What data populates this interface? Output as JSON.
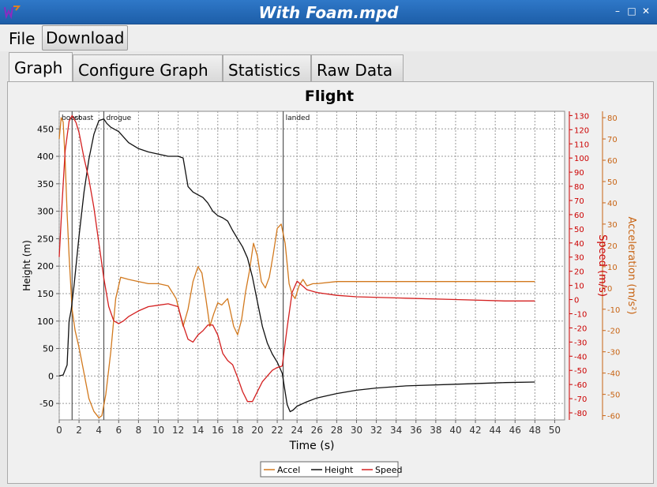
{
  "window": {
    "title": "With Foam.mpd"
  },
  "menu": {
    "file": "File",
    "download": "Download"
  },
  "tabs": [
    {
      "label": "Graph",
      "active": true
    },
    {
      "label": "Configure Graph",
      "active": false
    },
    {
      "label": "Statistics",
      "active": false
    },
    {
      "label": "Raw Data",
      "active": false
    }
  ],
  "colors": {
    "accel": "#d2791e",
    "height": "#111111",
    "speed": "#d42020",
    "speed_axis": "#cc0000",
    "accel_axis": "#c86414",
    "titlebar": "#2a6fbd"
  },
  "chart_data": {
    "type": "line",
    "title": "Flight",
    "xlabel": "Time (s)",
    "ylabel": "Height (m)",
    "y2label": "Speed (m/s)",
    "y3label": "Acceleration (m/s²)",
    "xlim": [
      0,
      51
    ],
    "xticks": [
      0,
      2,
      4,
      6,
      8,
      10,
      12,
      14,
      16,
      18,
      20,
      22,
      24,
      26,
      28,
      30,
      32,
      34,
      36,
      38,
      40,
      42,
      44,
      46,
      48,
      50
    ],
    "ylim": [
      -80,
      482
    ],
    "yticks": [
      -50,
      0,
      50,
      100,
      150,
      200,
      250,
      300,
      350,
      400,
      450
    ],
    "y2lim": [
      -85,
      133
    ],
    "y2ticks": [
      -80,
      -70,
      -60,
      -50,
      -40,
      -30,
      -20,
      -10,
      0,
      10,
      20,
      30,
      40,
      50,
      60,
      70,
      80,
      90,
      100,
      110,
      120,
      130
    ],
    "y3lim": [
      -62,
      83
    ],
    "y3ticks": [
      -60,
      -50,
      -40,
      -30,
      -20,
      -10,
      0,
      10,
      20,
      30,
      40,
      50,
      60,
      70,
      80
    ],
    "grid": true,
    "legend": {
      "placement": "bottom-center",
      "entries": [
        "Accel",
        "Height",
        "Speed"
      ]
    },
    "events": [
      {
        "label": "boost",
        "t": 0
      },
      {
        "label": "coast",
        "t": 1.3
      },
      {
        "label": "drogue",
        "t": 4.5
      },
      {
        "label": "landed",
        "t": 22.6
      }
    ],
    "series": [
      {
        "name": "Accel",
        "axis": "acceleration",
        "t": [
          0,
          0.2,
          0.4,
          0.6,
          0.8,
          1.0,
          1.3,
          1.6,
          2.0,
          2.5,
          3.0,
          3.5,
          4.0,
          4.3,
          4.7,
          5.2,
          5.7,
          6.2,
          7,
          8,
          9,
          10,
          11,
          11.8,
          12.5,
          13.0,
          13.5,
          14.0,
          14.4,
          14.8,
          15.2,
          15.6,
          16.0,
          16.4,
          17.0,
          17.6,
          18.0,
          18.4,
          18.8,
          19.2,
          19.6,
          20.0,
          20.4,
          20.8,
          21.2,
          21.6,
          22.0,
          22.4,
          22.8,
          23.2,
          23.5,
          23.8,
          24.2,
          24.6,
          25.0,
          25.6,
          26,
          28,
          30,
          32,
          35,
          40,
          45,
          48
        ],
        "v": [
          70,
          80,
          78,
          60,
          35,
          15,
          -10,
          -20,
          -28,
          -40,
          -52,
          -58,
          -61,
          -60,
          -50,
          -30,
          -5,
          5,
          4,
          3,
          2,
          2,
          1,
          -5,
          -18,
          -10,
          3,
          10,
          7,
          -5,
          -18,
          -12,
          -7,
          -8,
          -5,
          -18,
          -22,
          -15,
          -2,
          8,
          21,
          15,
          3,
          0,
          5,
          16,
          28,
          30,
          21,
          2,
          -3,
          -5,
          1,
          4,
          1,
          2,
          2,
          3,
          3,
          3,
          3,
          3,
          3,
          3
        ]
      },
      {
        "name": "Height",
        "axis": "height",
        "t": [
          0,
          0.4,
          0.8,
          1.0,
          1.2,
          1.5,
          2.0,
          2.5,
          3.0,
          3.5,
          4.0,
          4.5,
          4.8,
          5.2,
          6,
          7,
          8,
          9,
          10,
          11,
          12,
          12.5,
          13.0,
          13.5,
          14,
          14.5,
          15.0,
          15.5,
          16.0,
          16.5,
          17.0,
          17.5,
          18.0,
          18.5,
          19.0,
          19.5,
          20.0,
          20.5,
          21.0,
          21.5,
          22.0,
          22.5,
          23.0,
          23.3,
          23.6,
          24,
          25,
          26,
          28,
          30,
          32,
          35,
          40,
          45,
          48
        ],
        "v": [
          0,
          2,
          20,
          100,
          120,
          165,
          255,
          335,
          395,
          440,
          465,
          468,
          460,
          453,
          445,
          425,
          414,
          408,
          404,
          400,
          400,
          397,
          345,
          335,
          330,
          325,
          315,
          300,
          292,
          288,
          282,
          265,
          250,
          235,
          215,
          180,
          135,
          90,
          60,
          40,
          25,
          5,
          -52,
          -65,
          -62,
          -55,
          -47,
          -40,
          -32,
          -26,
          -22,
          -18,
          -15,
          -12,
          -11
        ]
      },
      {
        "name": "Speed",
        "axis": "speed",
        "t": [
          0,
          0.3,
          0.6,
          1.0,
          1.3,
          1.7,
          2.0,
          2.5,
          3.0,
          3.5,
          4.0,
          4.5,
          5.0,
          5.5,
          6.0,
          6.5,
          7,
          8,
          9,
          10,
          11,
          11.5,
          12,
          12.5,
          13.0,
          13.5,
          14.0,
          14.5,
          15.0,
          15.5,
          16.0,
          16.5,
          17.0,
          17.5,
          18.0,
          18.5,
          19.0,
          19.5,
          20.0,
          20.5,
          21.0,
          21.5,
          22.0,
          22.5,
          23.0,
          23.5,
          24.0,
          24.5,
          25,
          26,
          28,
          30,
          35,
          40,
          45,
          48
        ],
        "v": [
          30,
          70,
          105,
          126,
          130,
          125,
          118,
          100,
          85,
          65,
          40,
          15,
          -5,
          -15,
          -17,
          -15,
          -12,
          -8,
          -5,
          -4,
          -3,
          -4,
          -5,
          -18,
          -28,
          -30,
          -25,
          -22,
          -18,
          -18,
          -25,
          -38,
          -43,
          -46,
          -55,
          -65,
          -72,
          -72,
          -65,
          -58,
          -54,
          -50,
          -48,
          -47,
          -20,
          5,
          13,
          10,
          7,
          5,
          3,
          2,
          1,
          0,
          -1,
          -1
        ]
      }
    ]
  }
}
